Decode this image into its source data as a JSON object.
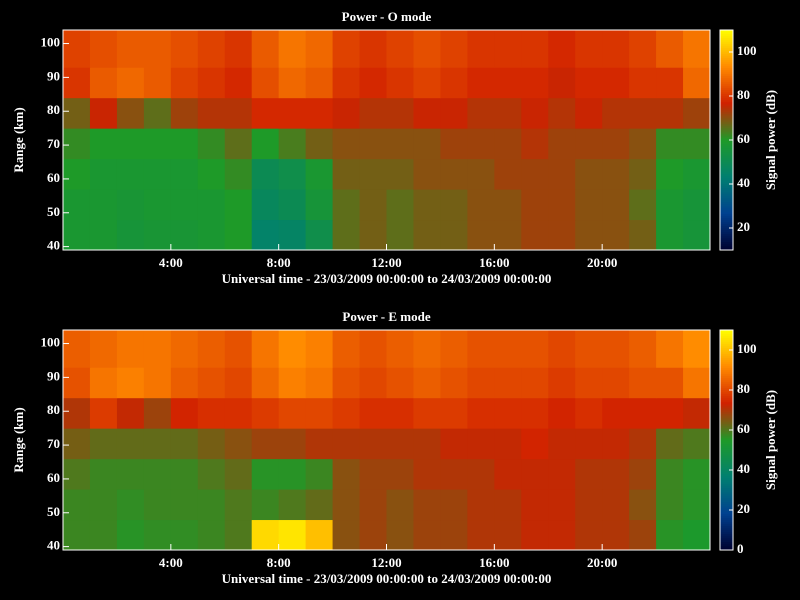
{
  "chart_data": [
    {
      "type": "heatmap",
      "title": "Power - O mode",
      "xlabel": "Universal time - 23/03/2009 00:00:00 to 24/03/2009 00:00:00",
      "ylabel": "Range (km)",
      "xlim": [
        0,
        24
      ],
      "xticks": [
        {
          "value": 4,
          "label": "4:00"
        },
        {
          "value": 8,
          "label": "8:00"
        },
        {
          "value": 12,
          "label": "12:00"
        },
        {
          "value": 16,
          "label": "16:00"
        },
        {
          "value": 20,
          "label": "20:00"
        }
      ],
      "ylim": [
        39,
        104
      ],
      "yticks": [
        40,
        50,
        60,
        70,
        80,
        90,
        100
      ],
      "xbins": [
        0,
        1,
        2,
        3,
        4,
        5,
        6,
        7,
        8,
        9,
        10,
        11,
        12,
        13,
        14,
        15,
        16,
        17,
        18,
        19,
        20,
        21,
        22,
        23,
        24
      ],
      "ybins": [
        39,
        48,
        57,
        66,
        75,
        84,
        93,
        104
      ],
      "values": [
        [
          58,
          58,
          56,
          57,
          57,
          58,
          60,
          45,
          46,
          52,
          66,
          68,
          66,
          68,
          68,
          70,
          70,
          72,
          72,
          70,
          70,
          68,
          58,
          56
        ],
        [
          58,
          58,
          57,
          58,
          58,
          58,
          60,
          48,
          50,
          56,
          66,
          68,
          66,
          68,
          68,
          70,
          70,
          72,
          72,
          70,
          70,
          66,
          58,
          56
        ],
        [
          60,
          58,
          58,
          58,
          58,
          60,
          62,
          50,
          52,
          58,
          68,
          68,
          68,
          70,
          70,
          70,
          72,
          72,
          72,
          70,
          70,
          68,
          60,
          58
        ],
        [
          62,
          60,
          60,
          60,
          60,
          62,
          66,
          60,
          64,
          68,
          70,
          70,
          70,
          70,
          72,
          72,
          72,
          74,
          72,
          72,
          72,
          70,
          62,
          62
        ],
        [
          68,
          76,
          70,
          66,
          72,
          74,
          74,
          78,
          78,
          78,
          76,
          74,
          74,
          76,
          76,
          74,
          74,
          76,
          74,
          76,
          74,
          74,
          74,
          72
        ],
        [
          80,
          86,
          88,
          86,
          82,
          80,
          78,
          84,
          88,
          86,
          80,
          78,
          80,
          82,
          80,
          78,
          78,
          78,
          76,
          78,
          78,
          80,
          80,
          88
        ],
        [
          82,
          84,
          86,
          86,
          84,
          82,
          80,
          86,
          90,
          88,
          82,
          80,
          82,
          84,
          82,
          80,
          80,
          80,
          78,
          80,
          80,
          82,
          86,
          90
        ]
      ],
      "colorbar": {
        "label": "Signal power (dB)",
        "zlim": [
          10,
          110
        ],
        "zticks": [
          20,
          40,
          60,
          80,
          100
        ],
        "colors": [
          "#000030",
          "#004090",
          "#008070",
          "#1e9a28",
          "#d02000",
          "#ff8a00",
          "#ffff00"
        ]
      }
    },
    {
      "type": "heatmap",
      "title": "Power - E mode",
      "xlabel": "Universal time - 23/03/2009 00:00:00 to 24/03/2009 00:00:00",
      "ylabel": "Range (km)",
      "xlim": [
        0,
        24
      ],
      "xticks": [
        {
          "value": 4,
          "label": "4:00"
        },
        {
          "value": 8,
          "label": "8:00"
        },
        {
          "value": 12,
          "label": "12:00"
        },
        {
          "value": 16,
          "label": "16:00"
        },
        {
          "value": 20,
          "label": "20:00"
        }
      ],
      "ylim": [
        39,
        104
      ],
      "yticks": [
        40,
        50,
        60,
        70,
        80,
        90,
        100
      ],
      "xbins": [
        0,
        1,
        2,
        3,
        4,
        5,
        6,
        7,
        8,
        9,
        10,
        11,
        12,
        13,
        14,
        15,
        16,
        17,
        18,
        19,
        20,
        21,
        22,
        23,
        24
      ],
      "ybins": [
        39,
        48,
        57,
        66,
        75,
        84,
        93,
        104
      ],
      "values": [
        [
          58,
          58,
          56,
          57,
          57,
          58,
          60,
          104,
          106,
          100,
          66,
          68,
          66,
          68,
          68,
          70,
          70,
          72,
          72,
          70,
          70,
          68,
          56,
          54
        ],
        [
          58,
          58,
          57,
          58,
          58,
          58,
          60,
          58,
          60,
          62,
          66,
          68,
          66,
          68,
          68,
          70,
          70,
          72,
          72,
          70,
          70,
          66,
          58,
          56
        ],
        [
          60,
          58,
          58,
          58,
          58,
          60,
          62,
          56,
          56,
          58,
          66,
          68,
          68,
          70,
          70,
          70,
          72,
          72,
          72,
          70,
          70,
          68,
          58,
          56
        ],
        [
          64,
          62,
          62,
          62,
          62,
          64,
          66,
          68,
          68,
          70,
          70,
          70,
          70,
          70,
          72,
          72,
          72,
          74,
          72,
          72,
          72,
          70,
          62,
          60
        ],
        [
          70,
          78,
          72,
          68,
          74,
          76,
          76,
          78,
          80,
          80,
          78,
          76,
          76,
          78,
          78,
          76,
          76,
          76,
          74,
          76,
          74,
          74,
          74,
          72
        ],
        [
          82,
          88,
          90,
          88,
          84,
          82,
          80,
          86,
          90,
          88,
          82,
          80,
          82,
          84,
          82,
          80,
          80,
          80,
          78,
          80,
          80,
          82,
          82,
          88
        ],
        [
          84,
          86,
          88,
          88,
          86,
          84,
          82,
          88,
          92,
          90,
          84,
          82,
          84,
          86,
          84,
          82,
          82,
          82,
          80,
          82,
          82,
          84,
          88,
          92
        ]
      ],
      "colorbar": {
        "label": "Signal power (dB)",
        "zlim": [
          0,
          110
        ],
        "zticks": [
          0,
          20,
          40,
          60,
          80,
          100
        ],
        "colors": [
          "#000030",
          "#004090",
          "#008070",
          "#1e9a28",
          "#d02000",
          "#ff8a00",
          "#ffff00"
        ]
      }
    }
  ]
}
